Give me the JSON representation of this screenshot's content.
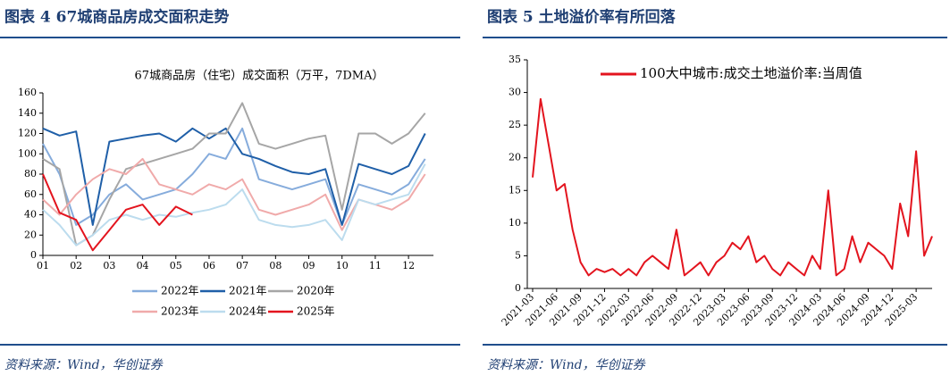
{
  "chart_data": [
    {
      "type": "line",
      "figure_title": "图表 4  67城商品房成交面积走势",
      "title": "67城商品房（住宅）成交面积（万平，7DMA）",
      "source": "资料来源：Wind，华创证券",
      "x": [
        1,
        1.5,
        2,
        2.5,
        3,
        3.5,
        4,
        4.5,
        5,
        5.5,
        6,
        6.5,
        7,
        7.5,
        8,
        8.5,
        9,
        9.5,
        10,
        10.5,
        11,
        11.5,
        12,
        12.5
      ],
      "xlim": [
        1,
        12.75
      ],
      "xticks": [
        {
          "value": 1,
          "label": "01"
        },
        {
          "value": 2,
          "label": "02"
        },
        {
          "value": 3,
          "label": "03"
        },
        {
          "value": 4,
          "label": "04"
        },
        {
          "value": 5,
          "label": "05"
        },
        {
          "value": 6,
          "label": "06"
        },
        {
          "value": 7,
          "label": "07"
        },
        {
          "value": 8,
          "label": "08"
        },
        {
          "value": 9,
          "label": "09"
        },
        {
          "value": 10,
          "label": "10"
        },
        {
          "value": 11,
          "label": "11"
        },
        {
          "value": 12,
          "label": "12"
        }
      ],
      "ylim": [
        0,
        160
      ],
      "yticks": [
        0,
        20,
        40,
        60,
        80,
        100,
        120,
        140,
        160
      ],
      "series": [
        {
          "name": "2022年",
          "color": "#86acdc",
          "values": [
            110,
            80,
            30,
            40,
            60,
            70,
            55,
            60,
            65,
            80,
            100,
            95,
            125,
            75,
            70,
            65,
            70,
            75,
            30,
            70,
            65,
            60,
            70,
            95
          ]
        },
        {
          "name": "2021年",
          "color": "#1f5fa8",
          "values": [
            125,
            118,
            122,
            30,
            112,
            115,
            118,
            120,
            112,
            125,
            115,
            125,
            100,
            95,
            88,
            82,
            80,
            85,
            30,
            90,
            85,
            80,
            88,
            120
          ]
        },
        {
          "name": "2020年",
          "color": "#a6a6a6",
          "values": [
            95,
            85,
            10,
            20,
            55,
            85,
            90,
            95,
            100,
            105,
            120,
            120,
            150,
            110,
            105,
            110,
            115,
            118,
            45,
            120,
            120,
            110,
            120,
            140
          ]
        },
        {
          "name": "2023年",
          "color": "#f0aaaa",
          "values": [
            55,
            40,
            60,
            75,
            85,
            80,
            95,
            70,
            65,
            60,
            70,
            65,
            75,
            45,
            40,
            45,
            50,
            60,
            25,
            55,
            50,
            45,
            55,
            80
          ]
        },
        {
          "name": "2024年",
          "color": "#bcdcee",
          "values": [
            45,
            30,
            10,
            20,
            35,
            40,
            35,
            40,
            38,
            42,
            45,
            50,
            65,
            35,
            30,
            28,
            30,
            35,
            15,
            55,
            50,
            55,
            60,
            90
          ]
        },
        {
          "name": "2025年",
          "color": "#e3141e",
          "values": [
            80,
            42,
            35,
            5,
            25,
            45,
            50,
            30,
            48,
            40,
            null,
            null,
            null,
            null,
            null,
            null,
            null,
            null,
            null,
            null,
            null,
            null,
            null,
            null
          ]
        }
      ]
    },
    {
      "type": "line",
      "figure_title": "图表 5  土地溢价率有所回落",
      "source": "资料来源：Wind，华创证券",
      "categories": [
        "2021-03",
        null,
        null,
        "2021-06",
        null,
        null,
        "2021-09",
        null,
        null,
        "2021-12",
        null,
        null,
        "2022-03",
        null,
        null,
        "2022-06",
        null,
        null,
        "2022-09",
        null,
        null,
        "2022-12",
        null,
        null,
        "2023-03",
        null,
        null,
        "2023-06",
        null,
        null,
        "2023-09",
        null,
        null,
        "2023-12",
        null,
        null,
        "2024-03",
        null,
        null,
        "2024-06",
        null,
        null,
        "2024-09",
        null,
        null,
        "2024-12",
        null,
        null,
        "2025-03",
        null,
        null
      ],
      "ylim": [
        0,
        35
      ],
      "yticks": [
        0,
        5,
        10,
        15,
        20,
        25,
        30,
        35
      ],
      "series": [
        {
          "name": "100大中城市:成交土地溢价率:当周值",
          "color": "#e3141e",
          "values": [
            17,
            29,
            22,
            15,
            16,
            9,
            4,
            2,
            3,
            2.5,
            3,
            2,
            3,
            2,
            4,
            5,
            4,
            3,
            9,
            2,
            3,
            4,
            2,
            4,
            5,
            7,
            6,
            8,
            4,
            5,
            3,
            2,
            4,
            3,
            2,
            5,
            3,
            15,
            2,
            3,
            8,
            4,
            7,
            6,
            5,
            3,
            13,
            8,
            21,
            5,
            8
          ]
        }
      ]
    }
  ]
}
